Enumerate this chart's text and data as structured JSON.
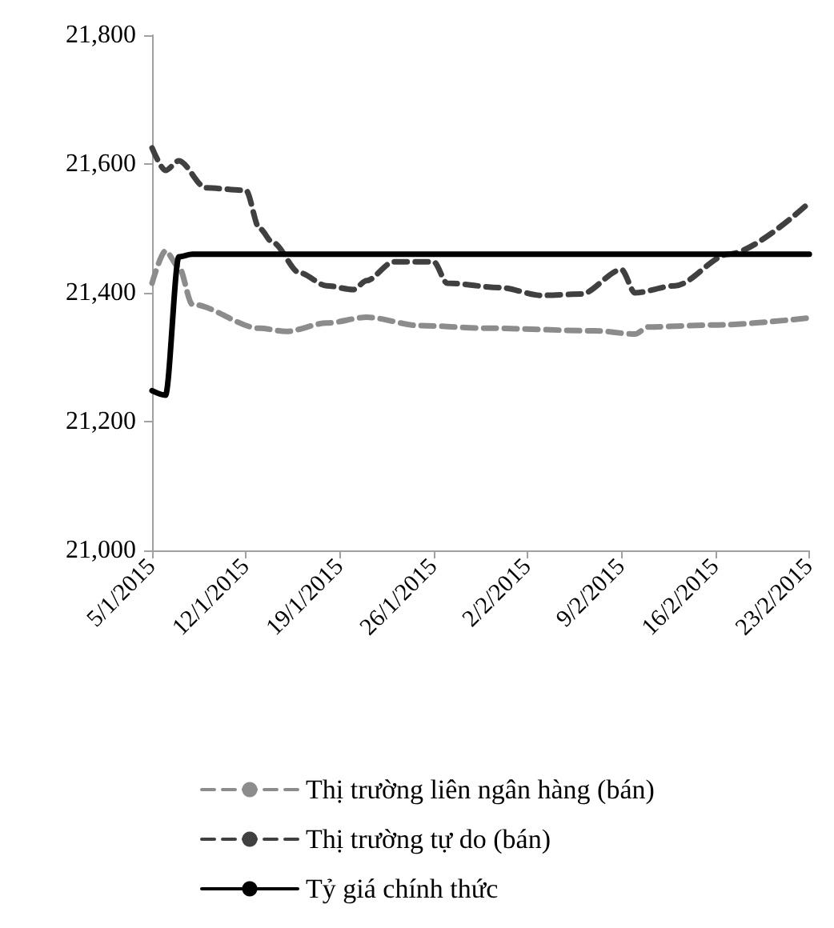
{
  "chart_data": {
    "type": "line",
    "xlim": [
      "2015-01-05",
      "2015-02-23"
    ],
    "xticks": [
      {
        "value": "2015-01-05",
        "label": "5/1/2015"
      },
      {
        "value": "2015-01-12",
        "label": "12/1/2015"
      },
      {
        "value": "2015-01-19",
        "label": "19/1/2015"
      },
      {
        "value": "2015-01-26",
        "label": "26/1/2015"
      },
      {
        "value": "2015-02-02",
        "label": "2/2/2015"
      },
      {
        "value": "2015-02-09",
        "label": "9/2/2015"
      },
      {
        "value": "2015-02-16",
        "label": "16/2/2015"
      },
      {
        "value": "2015-02-23",
        "label": "23/2/2015"
      }
    ],
    "ylim": [
      21000,
      21800
    ],
    "yticks": [
      {
        "value": 21000,
        "label": "21,000"
      },
      {
        "value": 21200,
        "label": "21,200"
      },
      {
        "value": 21400,
        "label": "21,400"
      },
      {
        "value": 21600,
        "label": "21,600"
      },
      {
        "value": 21800,
        "label": "21,800"
      }
    ],
    "grid": false,
    "legend": "bottom",
    "marker": "none",
    "series": [
      {
        "name": "Thị trường liên ngân hàng (bán)",
        "color": "#8c8c8c",
        "line_style": "dashed",
        "x": [
          "2015-01-05",
          "2015-01-06",
          "2015-01-07",
          "2015-01-08",
          "2015-01-13",
          "2015-01-15",
          "2015-01-18",
          "2015-01-21",
          "2015-01-25",
          "2015-01-30",
          "2015-02-07",
          "2015-02-10",
          "2015-02-11",
          "2015-02-16",
          "2015-02-23"
        ],
        "values": [
          21415,
          21465,
          21440,
          21382,
          21345,
          21340,
          21353,
          21362,
          21349,
          21345,
          21341,
          21336,
          21347,
          21350,
          21361
        ]
      },
      {
        "name": "Thị trường tự do (bán)",
        "color": "#404040",
        "line_style": "dashed",
        "x": [
          "2015-01-05",
          "2015-01-06",
          "2015-01-07",
          "2015-01-09",
          "2015-01-12",
          "2015-01-13",
          "2015-01-14",
          "2015-01-16",
          "2015-01-18",
          "2015-01-20",
          "2015-01-21",
          "2015-01-23",
          "2015-01-26",
          "2015-01-27",
          "2015-01-31",
          "2015-02-03",
          "2015-02-06",
          "2015-02-09",
          "2015-02-10",
          "2015-02-13",
          "2015-02-17",
          "2015-02-23"
        ],
        "values": [
          21625,
          21590,
          21605,
          21563,
          21559,
          21500,
          21478,
          21431,
          21411,
          21405,
          21419,
          21448,
          21448,
          21415,
          21408,
          21396,
          21398,
          21436,
          21400,
          21411,
          21460,
          21540
        ]
      },
      {
        "name": "Tỷ giá chính thức",
        "color": "#000000",
        "line_style": "solid",
        "x": [
          "2015-01-05",
          "2015-01-06",
          "2015-01-07",
          "2015-01-08",
          "2015-02-23"
        ],
        "values": [
          21248,
          21241,
          21456,
          21460,
          21460
        ]
      }
    ]
  }
}
